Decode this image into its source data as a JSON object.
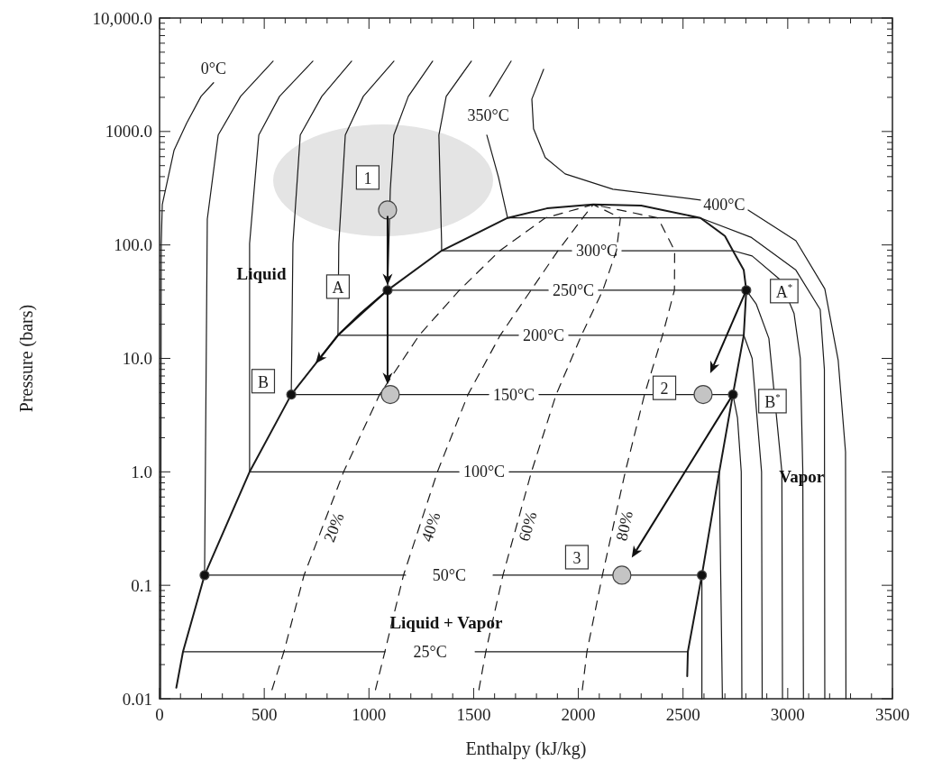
{
  "chart_data": {
    "type": "line",
    "xlabel": "Enthalpy (kJ/kg)",
    "ylabel": "Pressure (bars)",
    "xlim": [
      0,
      3500
    ],
    "ylim": [
      0.01,
      10000
    ],
    "xticks": [
      0,
      500,
      1000,
      1500,
      2000,
      2500,
      3000,
      3500
    ],
    "yticks": [
      0.01,
      0.1,
      {
        "value": 1,
        "label": "1.0"
      },
      {
        "value": 10,
        "label": "10.0"
      },
      {
        "value": 100,
        "label": "100.0"
      },
      {
        "value": 1000,
        "label": "1000.0"
      },
      {
        "value": 10000,
        "label": "10,000.0"
      }
    ],
    "log": true,
    "grid": false,
    "series": [
      {
        "color": "#1a1a1a",
        "x": [
          80,
          112,
          215,
          430,
          629,
          852,
          1089,
          1347,
          1662,
          1850,
          2071,
          2300,
          2583,
          2700,
          2738,
          2790,
          2802,
          2790,
          2738,
          2673,
          2590,
          2523,
          2520
        ],
        "values": [
          0.0125,
          0.026,
          0.1228,
          1,
          4.8,
          16,
          39.9,
          89,
          173,
          210,
          227,
          222,
          173,
          120,
          89,
          60,
          39.9,
          16,
          4.8,
          1,
          0.1228,
          0.026,
          0.0158
        ]
      },
      {
        "name": "0°C",
        "color": "#1a1a1a",
        "x": [
          258,
          198,
          129,
          69,
          13,
          8,
          5
        ],
        "values": [
          2690,
          2040,
          1180,
          681,
          227,
          100,
          0.01
        ]
      },
      {
        "name": "25°C",
        "color": "#1a1a1a",
        "x": [
          112,
          1077,
          null,
          1507,
          2523
        ],
        "values": [
          0.026,
          0.026,
          null,
          0.026,
          0.026
        ]
      },
      {
        "name": "50°C",
        "color": "#1a1a1a",
        "x": [
          542,
          387,
          280,
          228,
          215,
          1175,
          null,
          1593,
          2590,
          2590
        ],
        "values": [
          4170,
          2040,
          930,
          169,
          0.1228,
          0.1228,
          null,
          0.1228,
          0.1228,
          0.01
        ]
      },
      {
        "name": "100°C",
        "color": "#1a1a1a",
        "x": [
          732,
          573,
          474,
          430,
          430,
          1430,
          null,
          1670,
          2673,
          2688
        ],
        "values": [
          4170,
          2040,
          930,
          103,
          1,
          1,
          null,
          1,
          1,
          0.01
        ]
      },
      {
        "name": "150°C",
        "color": "#1a1a1a",
        "x": [
          917,
          775,
          672,
          637,
          629,
          1572,
          null,
          1812,
          2738,
          2760,
          2778,
          2781
        ],
        "values": [
          4170,
          2040,
          930,
          103,
          4.8,
          4.8,
          null,
          4.8,
          4.8,
          3,
          1,
          0.01
        ]
      },
      {
        "name": "200°C",
        "color": "#1a1a1a",
        "x": [
          1119,
          973,
          887,
          856,
          852,
          1714,
          null,
          1954,
          2790,
          2830,
          2875,
          2878
        ],
        "values": [
          4170,
          2040,
          930,
          103,
          16,
          16,
          null,
          16,
          16,
          10,
          1,
          0.01
        ]
      },
      {
        "name": "250°C",
        "color": "#1a1a1a",
        "x": [
          1304,
          1188,
          1119,
          1102,
          1089,
          1856,
          null,
          2096,
          2802,
          2850,
          2910,
          2972,
          2975
        ],
        "values": [
          4170,
          2040,
          930,
          310,
          39.9,
          39.9,
          null,
          39.9,
          39.9,
          30,
          15,
          1,
          0.01
        ]
      },
      {
        "name": "300°C",
        "color": "#1a1a1a",
        "x": [
          1489,
          1369,
          1334,
          1347,
          1347,
          1968,
          null,
          2208,
          2738,
          2830,
          2960,
          3030,
          3060,
          3072,
          3075
        ],
        "values": [
          4170,
          2040,
          930,
          103,
          89,
          89,
          null,
          89,
          89,
          80,
          50,
          25,
          10,
          1,
          0.01
        ]
      },
      {
        "name": "350°C",
        "color": "#1a1a1a",
        "x": [
          1679,
          1576,
          null,
          1563,
          1619,
          1662,
          2583,
          2824,
          3039,
          3155,
          3175,
          3177
        ],
        "values": [
          4170,
          2040,
          null,
          930,
          393,
          173,
          173,
          117,
          60,
          27,
          8,
          0.01
        ]
      },
      {
        "name": "400°C",
        "color": "#1a1a1a",
        "x": [
          1834,
          1778,
          1786,
          1842,
          1937,
          2165,
          2583,
          null,
          2811,
          3039,
          3177,
          3241,
          3276,
          3278
        ],
        "values": [
          3530,
          1930,
          1057,
          590,
          423,
          310,
          249,
          null,
          203,
          109,
          41,
          9.6,
          1.5,
          0.01
        ]
      },
      {
        "name": "20%",
        "color": "#1a1a1a",
        "line_style": "dashed",
        "x": [
          537,
          594,
          690,
          879,
          1051,
          1240,
          1432,
          1625,
          1842,
          2071
        ],
        "values": [
          0.012,
          0.026,
          0.1228,
          1,
          4.8,
          16,
          39.9,
          89,
          173,
          227
        ]
      },
      {
        "name": "40%",
        "color": "#1a1a1a",
        "line_style": "dashed",
        "x": [
          1031,
          1076,
          1165,
          1327,
          1473,
          1627,
          1774,
          1903,
          2021,
          2071
        ],
        "values": [
          0.012,
          0.026,
          0.1228,
          1,
          4.8,
          16,
          39.9,
          89,
          173,
          227
        ]
      },
      {
        "name": "60%",
        "color": "#1a1a1a",
        "line_style": "dashed",
        "x": [
          1525,
          1558,
          1640,
          1776,
          1894,
          2015,
          2117,
          2182,
          2201,
          2071
        ],
        "values": [
          0.012,
          0.026,
          0.1228,
          1,
          4.8,
          16,
          39.9,
          89,
          173,
          227
        ]
      },
      {
        "name": "80%",
        "color": "#1a1a1a",
        "line_style": "dashed",
        "x": [
          2019,
          2041,
          2115,
          2224,
          2316,
          2402,
          2459,
          2460,
          2380,
          2071
        ],
        "values": [
          0.012,
          0.026,
          0.1228,
          1,
          4.8,
          16,
          39.9,
          89,
          173,
          227
        ]
      },
      {
        "type": "scatter",
        "color": "#c4c4c4",
        "marker": "circle",
        "x": [
          1089,
          1102,
          2596,
          2208
        ],
        "values": [
          203,
          4.8,
          4.8,
          0.1228
        ]
      },
      {
        "type": "scatter",
        "color": "#111111",
        "marker": "circle",
        "x": [
          1089,
          2802,
          629,
          2738,
          215,
          2590
        ],
        "values": [
          39.9,
          39.9,
          4.8,
          4.8,
          0.1228,
          0.1228
        ]
      }
    ],
    "annotations": [
      "Liquid",
      "Vapor",
      "Liquid + Vapor",
      {
        "text": "1",
        "x": 994,
        "y": 393
      },
      {
        "text": "A",
        "x": 852,
        "y": 42.9
      },
      {
        "text": "A$^{*}$",
        "x": 2983,
        "y": 39.2
      },
      {
        "text": "B",
        "x": 495,
        "y": 6.3
      },
      {
        "text": "B$^{*}$",
        "x": 2927,
        "y": 4.2
      },
      {
        "text": "2",
        "x": 2411,
        "y": 5.5
      },
      {
        "text": "3",
        "x": 1993,
        "y": 0.177
      }
    ]
  }
}
